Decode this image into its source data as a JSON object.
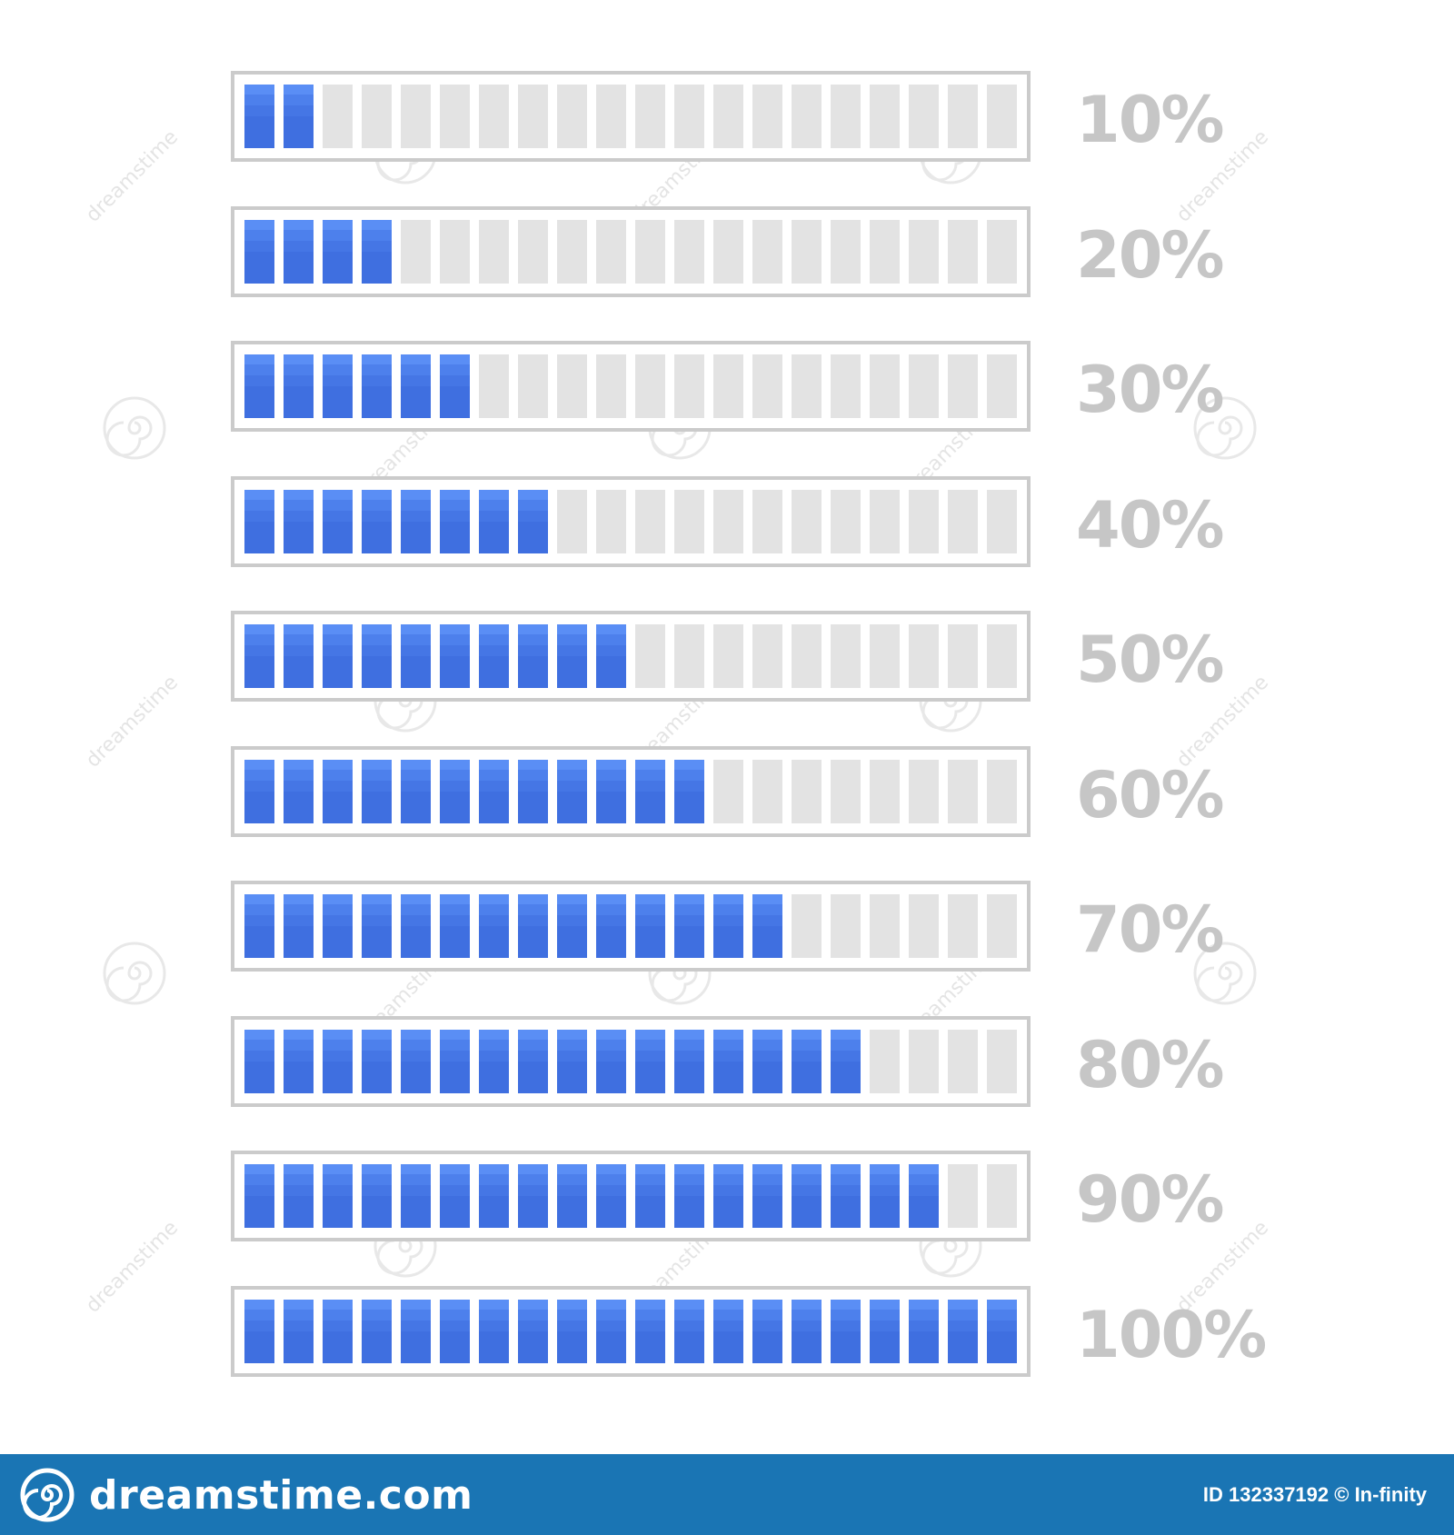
{
  "segments_per_bar": 20,
  "colors": {
    "filled": "#3f6fe0",
    "empty": "#e3e3e3",
    "frame": "#cbcbcb",
    "label": "#c6c6c6",
    "footer": "#1a75b4"
  },
  "bars": [
    {
      "label": "10%",
      "progress": 0.1
    },
    {
      "label": "20%",
      "progress": 0.2
    },
    {
      "label": "30%",
      "progress": 0.3
    },
    {
      "label": "40%",
      "progress": 0.4
    },
    {
      "label": "50%",
      "progress": 0.5
    },
    {
      "label": "60%",
      "progress": 0.6
    },
    {
      "label": "70%",
      "progress": 0.7
    },
    {
      "label": "80%",
      "progress": 0.8
    },
    {
      "label": "90%",
      "progress": 0.9
    },
    {
      "label": "100%",
      "progress": 1.0
    }
  ],
  "watermark": {
    "text": "dreamstime",
    "icon": "dreamstime-spiral-icon"
  },
  "footer": {
    "brand": "dreamstime.com",
    "brand_icon": "dreamstime-spiral-icon",
    "credit": "ID 132337192 © In-finity"
  }
}
